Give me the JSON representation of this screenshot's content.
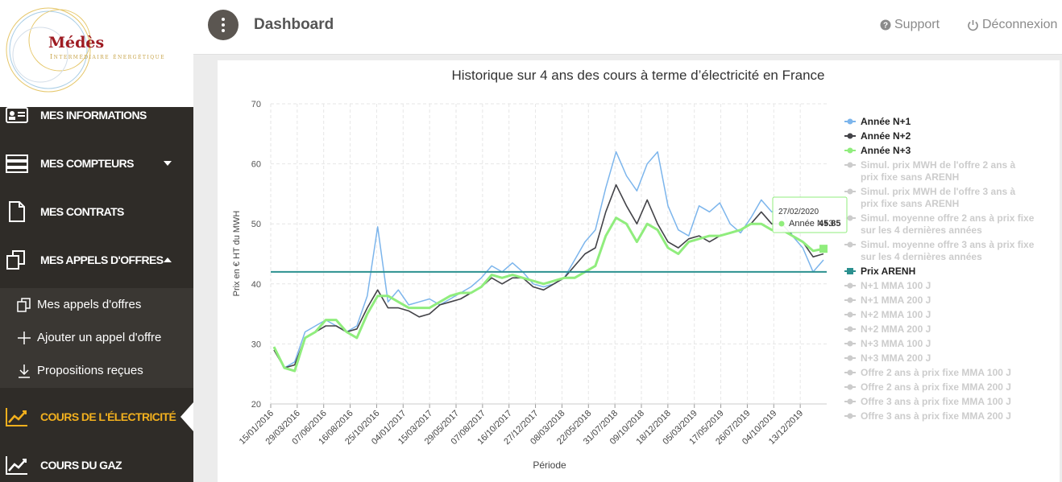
{
  "brand": {
    "name": "Médès",
    "tagline": "Intermédiaire énergétique"
  },
  "header": {
    "title": "Dashboard",
    "support": "Support",
    "logout": "Déconnexion"
  },
  "sidebar": {
    "items": [
      {
        "label": "MES INFORMATIONS",
        "icon": "id-card-icon"
      },
      {
        "label": "MES COMPTEURS",
        "icon": "server-icon"
      },
      {
        "label": "MES CONTRATS",
        "icon": "document-icon"
      },
      {
        "label": "MES APPELS D'OFFRES",
        "icon": "copy-icon"
      },
      {
        "label": "COURS DE L'ÉLECTRICITÉ",
        "icon": "chart-line-icon"
      },
      {
        "label": "COURS DU GAZ",
        "icon": "chart-line-icon"
      }
    ],
    "submenu": [
      {
        "label": "Mes appels d'offres",
        "icon": "copy-icon"
      },
      {
        "label": "Ajouter un appel d'offre",
        "icon": "plus-icon"
      },
      {
        "label": "Propositions reçues",
        "icon": "download-icon"
      }
    ],
    "active_color": "#f2b01e"
  },
  "chart_data": {
    "type": "line",
    "title": "Historique sur 4 ans des cours à terme d’électricité en France",
    "xlabel": "Période",
    "ylabel": "Prix en € HT du MWH",
    "ylim": [
      20,
      70
    ],
    "yticks": [
      20,
      30,
      40,
      50,
      60,
      70
    ],
    "xticks": [
      "15/01/2016",
      "29/03/2016",
      "07/06/2016",
      "16/08/2016",
      "25/10/2016",
      "04/01/2017",
      "15/03/2017",
      "29/05/2017",
      "07/08/2017",
      "16/10/2017",
      "27/12/2017",
      "08/03/2018",
      "22/05/2018",
      "31/07/2018",
      "09/10/2018",
      "18/12/2018",
      "05/03/2019",
      "17/05/2019",
      "26/07/2019",
      "04/10/2019",
      "13/12/2019"
    ],
    "grid": true,
    "legend_position": "right",
    "series": [
      {
        "name": "Année N+1",
        "color": "#7cb5ec",
        "visible": true,
        "values": [
          29.5,
          26,
          27,
          32,
          33,
          34,
          33,
          32,
          33,
          38,
          49.5,
          37,
          39,
          36.5,
          37,
          37.5,
          36.5,
          37.5,
          38.5,
          39.5,
          41,
          43,
          42,
          43.5,
          42,
          40,
          39.5,
          40,
          41,
          44,
          47,
          49,
          56,
          62,
          58,
          55.5,
          60,
          62,
          53,
          49,
          48,
          53,
          52,
          53.5,
          50,
          48.5,
          51,
          54,
          52,
          52.5,
          48,
          46,
          42,
          44
        ]
      },
      {
        "name": "Année N+2",
        "color": "#434348",
        "visible": true,
        "values": [
          29,
          26,
          26.5,
          31,
          32,
          33,
          33,
          32,
          32.5,
          36,
          39,
          36,
          36,
          35.5,
          34.5,
          35,
          36.5,
          37,
          37.5,
          38.5,
          39.5,
          41,
          40,
          41,
          41,
          39.5,
          39,
          40,
          41,
          43,
          45,
          46,
          52,
          56.5,
          53,
          50,
          54,
          50,
          47,
          46,
          47.5,
          48,
          47,
          48,
          48.5,
          49,
          50,
          52,
          50,
          50,
          48,
          47,
          44.5,
          45
        ]
      },
      {
        "name": "Année N+3",
        "color": "#90ed7d",
        "visible": true,
        "values": [
          29.5,
          26,
          25.5,
          31,
          32,
          34,
          34,
          32,
          31,
          35,
          38,
          38,
          37,
          36,
          36,
          36,
          37,
          38,
          38.5,
          38.5,
          39.5,
          41.5,
          41,
          41.5,
          41,
          40.5,
          40,
          40.5,
          41,
          41,
          42,
          43,
          48,
          51,
          50,
          47,
          50,
          49,
          46,
          45,
          47,
          47.5,
          48,
          48,
          48.5,
          49,
          50,
          50,
          49,
          49,
          48,
          47,
          45.5,
          45.85
        ]
      },
      {
        "name": "Simul. prix MWH de l'offre 2 ans à prix fixe sans ARENH",
        "color": "#cccccc",
        "visible": false
      },
      {
        "name": "Simul. prix MWH de l'offre 3 ans à prix fixe sans ARENH",
        "color": "#cccccc",
        "visible": false
      },
      {
        "name": "Simul. moyenne offre 2 ans à prix fixe sur les 4 dernières années",
        "color": "#cccccc",
        "visible": false
      },
      {
        "name": "Simul. moyenne offre 3 ans à prix fixe sur les 4 dernières années",
        "color": "#cccccc",
        "visible": false
      },
      {
        "name": "Prix ARENH",
        "color": "#2b908f",
        "visible": true,
        "value": 42
      },
      {
        "name": "N+1 MMA 100 J",
        "color": "#cccccc",
        "visible": false
      },
      {
        "name": "N+1 MMA 200 J",
        "color": "#cccccc",
        "visible": false
      },
      {
        "name": "N+2 MMA 100 J",
        "color": "#cccccc",
        "visible": false
      },
      {
        "name": "N+2 MMA 200 J",
        "color": "#cccccc",
        "visible": false
      },
      {
        "name": "N+3 MMA 100 J",
        "color": "#cccccc",
        "visible": false
      },
      {
        "name": "N+3 MMA 200 J",
        "color": "#cccccc",
        "visible": false
      },
      {
        "name": "Offre 2 ans à prix fixe MMA 100 J",
        "color": "#cccccc",
        "visible": false
      },
      {
        "name": "Offre 2 ans à prix fixe MMA 200 J",
        "color": "#cccccc",
        "visible": false
      },
      {
        "name": "Offre 3 ans à prix fixe MMA 100 J",
        "color": "#cccccc",
        "visible": false
      },
      {
        "name": "Offre 3 ans à prix fixe MMA 200 J",
        "color": "#cccccc",
        "visible": false
      }
    ],
    "tooltip": {
      "date": "27/02/2020",
      "series": "Année N+3",
      "value": "45.85"
    }
  }
}
